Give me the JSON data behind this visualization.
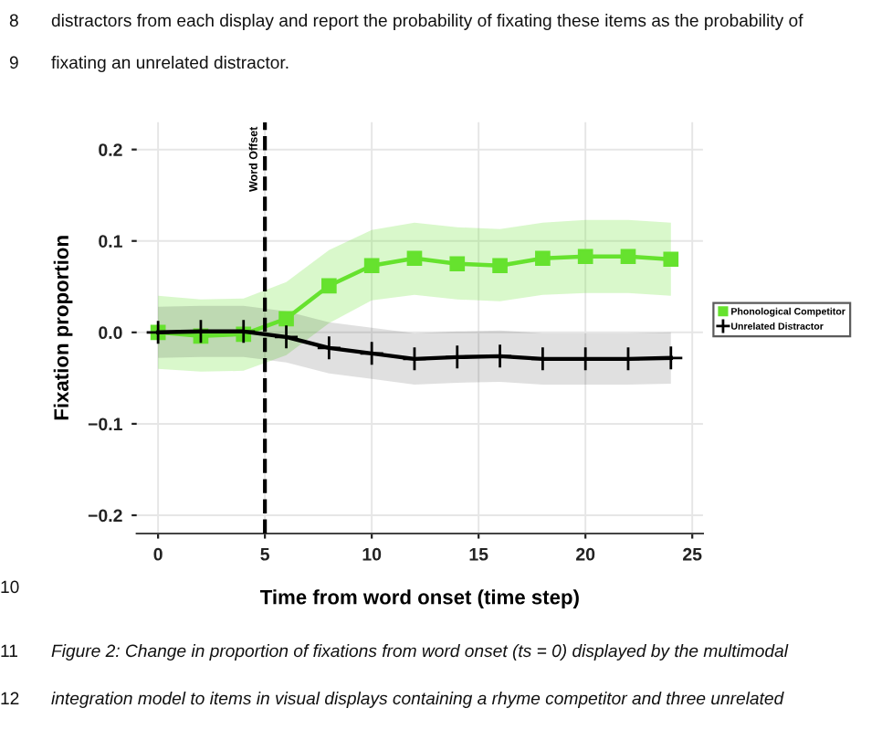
{
  "chart_data": {
    "type": "line",
    "xlabel": "Time from word onset (time step)",
    "ylabel": "Fixation proportion",
    "x": [
      0,
      2,
      4,
      6,
      8,
      10,
      12,
      14,
      16,
      18,
      20,
      22,
      24
    ],
    "series": [
      {
        "name": "Phonological Competitor",
        "color": "#66e22e",
        "marker": "square",
        "values": [
          0.0,
          -0.004,
          -0.002,
          0.015,
          0.051,
          0.073,
          0.081,
          0.075,
          0.073,
          0.081,
          0.083,
          0.083,
          0.08
        ],
        "lower": [
          -0.04,
          -0.043,
          -0.042,
          -0.025,
          0.01,
          0.035,
          0.041,
          0.036,
          0.034,
          0.041,
          0.043,
          0.043,
          0.04
        ],
        "upper": [
          0.04,
          0.036,
          0.037,
          0.055,
          0.09,
          0.112,
          0.12,
          0.115,
          0.113,
          0.12,
          0.123,
          0.123,
          0.12
        ]
      },
      {
        "name": "Unrelated Distractor",
        "color": "#000000",
        "marker": "cross",
        "values": [
          0.0,
          0.001,
          0.001,
          -0.005,
          -0.017,
          -0.023,
          -0.029,
          -0.027,
          -0.026,
          -0.029,
          -0.029,
          -0.029,
          -0.028
        ],
        "lower": [
          -0.028,
          -0.027,
          -0.027,
          -0.033,
          -0.045,
          -0.051,
          -0.057,
          -0.055,
          -0.054,
          -0.057,
          -0.057,
          -0.057,
          -0.056
        ],
        "upper": [
          0.028,
          0.029,
          0.029,
          0.023,
          0.011,
          0.005,
          -0.001,
          0.001,
          0.002,
          -0.001,
          -0.001,
          -0.001,
          0.0
        ]
      }
    ],
    "xlim": [
      -1,
      25.5
    ],
    "ylim": [
      -0.22,
      0.23
    ],
    "xticks": [
      0,
      5,
      10,
      15,
      20,
      25
    ],
    "yticks": [
      {
        "value": -0.2,
        "label": "−0.2"
      },
      {
        "value": -0.1,
        "label": "−0.1"
      },
      {
        "value": 0.0,
        "label": "0.0"
      },
      {
        "value": 0.1,
        "label": "0.1"
      },
      {
        "value": 0.2,
        "label": "0.2"
      }
    ],
    "ref_lines": [
      {
        "axis": "x",
        "value": 5,
        "label": "Word Offset",
        "color": "#000000",
        "line_style": "dashed"
      }
    ],
    "grid": true,
    "legend": "right",
    "line_style": "solid",
    "annotations": [
      "8",
      "distractors from each display and report the probability of fixating these items as the probability of",
      "9",
      "fixating an unrelated distractor.",
      "10",
      "11",
      "Figure 2: Change in proportion of fixations from word onset (ts = 0) displayed by the multimodal",
      "12",
      "integration model to items in visual displays containing a rhyme competitor and three unrelated"
    ]
  }
}
